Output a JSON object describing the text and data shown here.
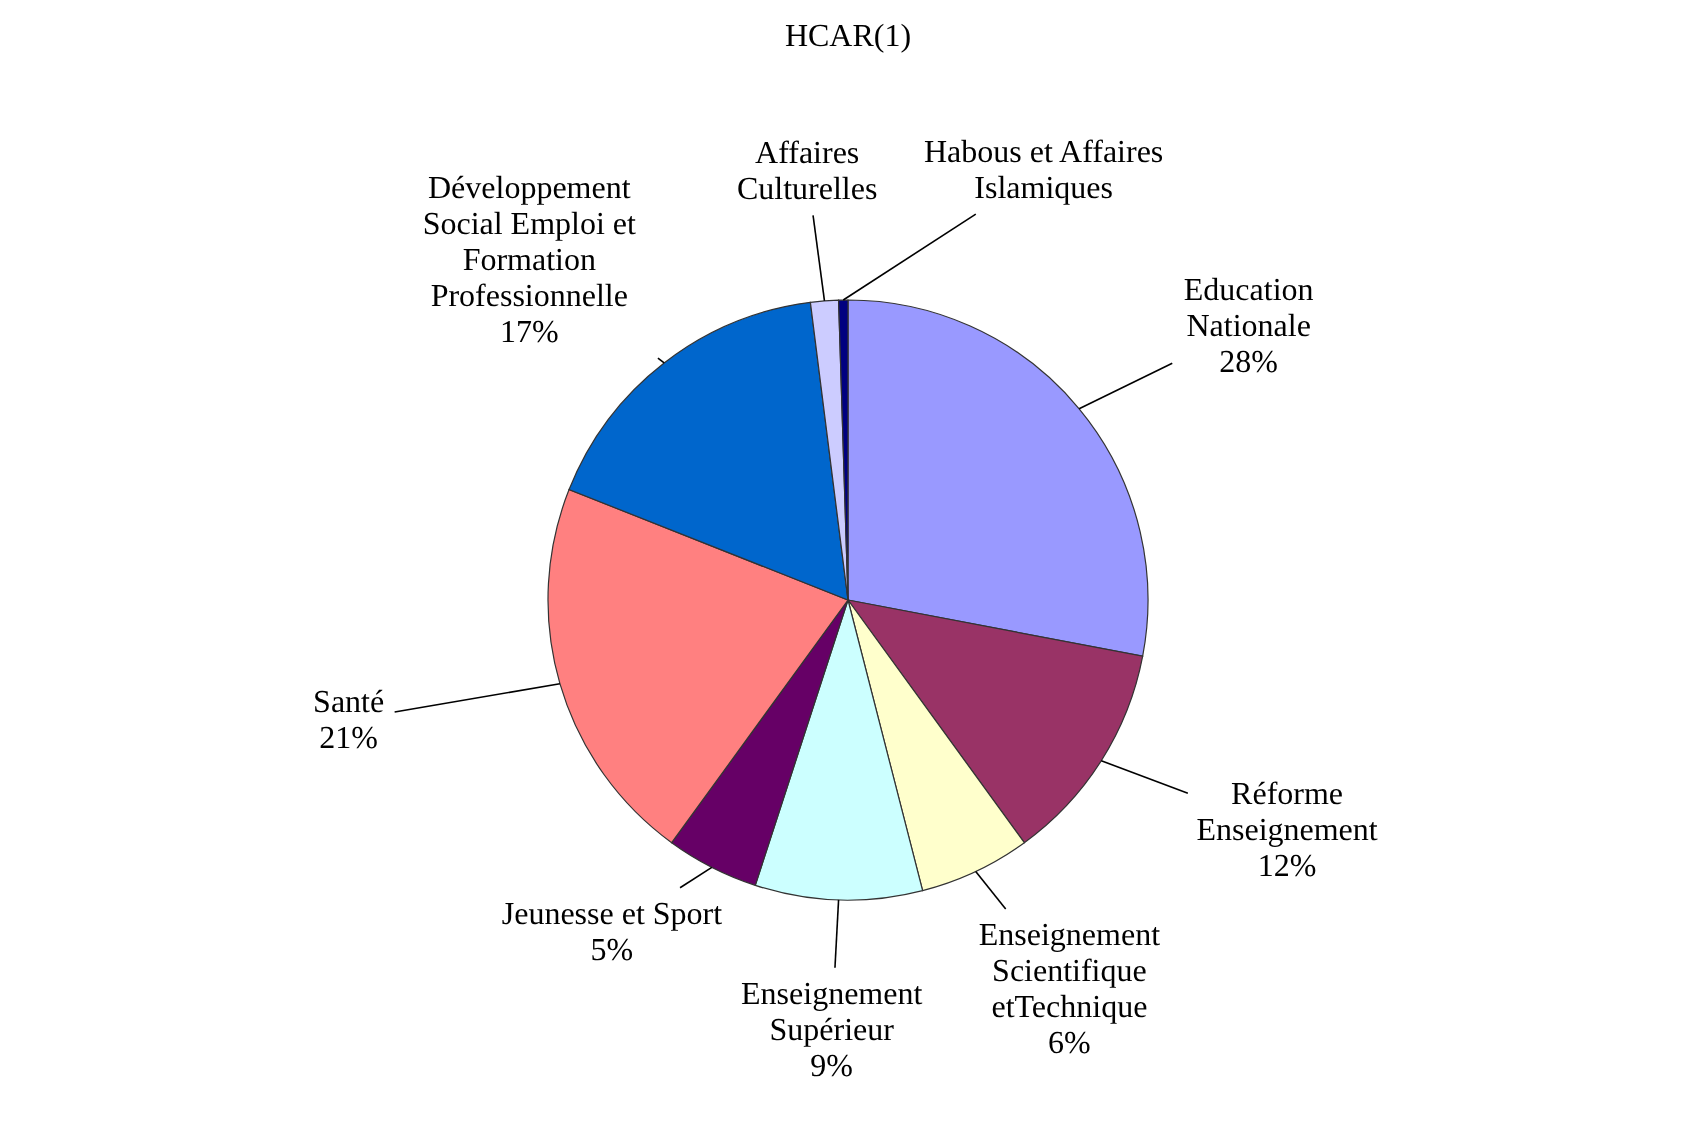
{
  "chart_data": {
    "type": "pie",
    "title": "HCAR(1)",
    "categories": [
      "Education Nationale",
      "Réforme Enseignement",
      "Enseignement Scientifique etTechnique",
      "Enseignement Supérieur",
      "Jeunesse et Sport",
      "Santé",
      "Développement Social Emploi et Formation Professionnelle",
      "Affaires Culturelles",
      "Habous et Affaires Islamiques"
    ],
    "values": [
      28,
      12,
      6,
      9,
      5,
      21,
      17,
      1.5,
      0.5
    ],
    "colors": [
      "#9999ff",
      "#993366",
      "#ffffcc",
      "#ccffff",
      "#660066",
      "#ff8080",
      "#0066cc",
      "#ccccff",
      "#000080"
    ],
    "value_labels": [
      "28%",
      "12%",
      "6%",
      "9%",
      "5%",
      "21%",
      "17%",
      null,
      null
    ]
  }
}
